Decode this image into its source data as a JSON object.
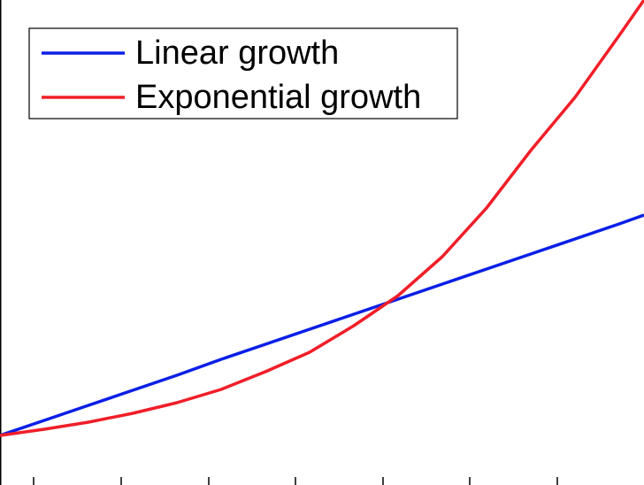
{
  "chart_data": {
    "type": "line",
    "x": [
      0,
      0.5,
      1,
      1.5,
      2,
      2.5,
      3,
      3.5,
      4,
      4.5,
      5,
      5.5,
      6,
      6.5,
      7,
      7.28
    ],
    "series": [
      {
        "name": "Linear growth",
        "color": "#0a1fe6",
        "values": [
          0.56,
          0.73,
          0.9,
          1.07,
          1.24,
          1.42,
          1.59,
          1.76,
          1.93,
          2.1,
          2.27,
          2.44,
          2.61,
          2.78,
          2.95,
          3.05
        ]
      },
      {
        "name": "Exponential growth",
        "color": "#f01e28",
        "values": [
          0.56,
          0.63,
          0.71,
          0.81,
          0.93,
          1.08,
          1.28,
          1.5,
          1.8,
          2.14,
          2.58,
          3.13,
          3.78,
          4.38,
          5.08,
          5.48
        ]
      }
    ],
    "xlim": [
      0,
      7.28
    ],
    "ylim": [
      0,
      5.48
    ],
    "xticks": [
      0.38,
      1.37,
      2.36,
      3.34,
      4.33,
      5.31,
      6.3
    ],
    "legend": "upper left"
  }
}
